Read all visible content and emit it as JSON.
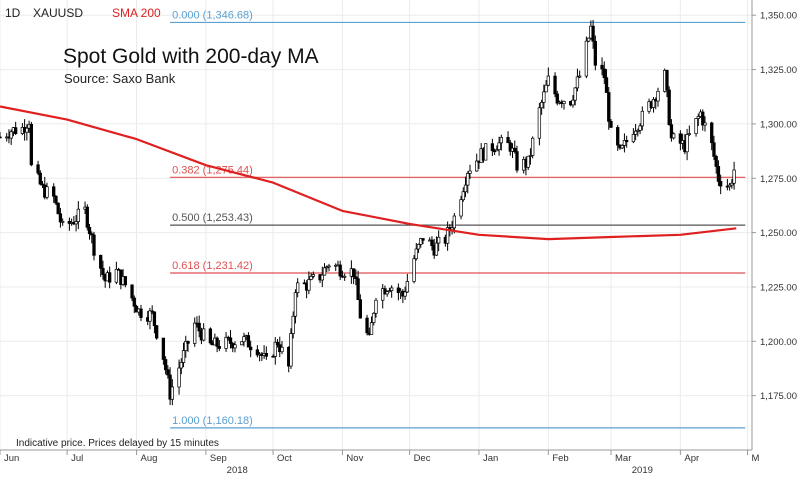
{
  "header": {
    "interval": "1D",
    "symbol": "XAUUSD",
    "indicator": "SMA 200",
    "indicator_color": "#e02020"
  },
  "title_block": {
    "title": "Spot Gold with 200-day MA",
    "source": "Source: Saxo Bank"
  },
  "footer_note": "Indicative price. Prices delayed by 15 minutes",
  "colors": {
    "candle": "#000000",
    "sma": "#e02020",
    "fib_blue": "#5aa0d0",
    "fib_red": "#e05050",
    "fib_grey": "#555555",
    "grid": "#ebebeb",
    "axis": "#999999"
  },
  "chart_data": {
    "type": "candlestick",
    "title": "Spot Gold with 200-day MA",
    "subtitle": "Source: Saxo Bank",
    "ylim": [
      1150,
      1357
    ],
    "xlim": [
      "2018-06-01",
      "2019-05-03"
    ],
    "y_ticks": [
      "1,175.00",
      "1,200.00",
      "1,225.00",
      "1,250.00",
      "1,275.00",
      "1,300.00",
      "1,325.00",
      "1,350.00"
    ],
    "y_tick_values": [
      1175,
      1200,
      1225,
      1250,
      1275,
      1300,
      1325,
      1350
    ],
    "x_ticks": [
      {
        "label": "Jun",
        "date": "2018-06-01"
      },
      {
        "label": "Jul",
        "date": "2018-07-01"
      },
      {
        "label": "Aug",
        "date": "2018-08-01"
      },
      {
        "label": "Sep",
        "date": "2018-09-01"
      },
      {
        "label": "Oct",
        "date": "2018-10-01"
      },
      {
        "label": "Nov",
        "date": "2018-11-01"
      },
      {
        "label": "Dec",
        "date": "2018-12-01"
      },
      {
        "label": "Jan",
        "date": "2019-01-01"
      },
      {
        "label": "Feb",
        "date": "2019-02-01"
      },
      {
        "label": "Mar",
        "date": "2019-03-01"
      },
      {
        "label": "Apr",
        "date": "2019-04-01"
      },
      {
        "label": "M",
        "date": "2019-05-01"
      }
    ],
    "year_labels": [
      {
        "label": "2018",
        "date": "2018-09-15"
      },
      {
        "label": "2019",
        "date": "2019-03-15"
      }
    ],
    "fib_levels": [
      {
        "label": "0.000 (1,346.68)",
        "value": 1346.68,
        "color": "#5aa0d0"
      },
      {
        "label": "0.382 (1,275.44)",
        "value": 1275.44,
        "color": "#e05050"
      },
      {
        "label": "0.500 (1,253.43)",
        "value": 1253.43,
        "color": "#555555"
      },
      {
        "label": "0.618 (1,231.42)",
        "value": 1231.42,
        "color": "#e05050"
      },
      {
        "label": "1.000 (1,160.18)",
        "value": 1160.18,
        "color": "#5aa0d0"
      }
    ],
    "price_path": [
      [
        "2018-06-01",
        1294
      ],
      [
        "2018-06-06",
        1297
      ],
      [
        "2018-06-11",
        1298
      ],
      [
        "2018-06-14",
        1302
      ],
      [
        "2018-06-15",
        1280
      ],
      [
        "2018-06-20",
        1270
      ],
      [
        "2018-06-25",
        1266
      ],
      [
        "2018-06-29",
        1252
      ],
      [
        "2018-07-03",
        1255
      ],
      [
        "2018-07-09",
        1260
      ],
      [
        "2018-07-13",
        1243
      ],
      [
        "2018-07-18",
        1228
      ],
      [
        "2018-07-23",
        1232
      ],
      [
        "2018-07-27",
        1226
      ],
      [
        "2018-08-02",
        1214
      ],
      [
        "2018-08-08",
        1212
      ],
      [
        "2018-08-13",
        1193
      ],
      [
        "2018-08-16",
        1176
      ],
      [
        "2018-08-20",
        1188
      ],
      [
        "2018-08-27",
        1208
      ],
      [
        "2018-09-03",
        1198
      ],
      [
        "2018-09-10",
        1199
      ],
      [
        "2018-09-17",
        1201
      ],
      [
        "2018-09-24",
        1197
      ],
      [
        "2018-09-28",
        1190
      ],
      [
        "2018-10-03",
        1200
      ],
      [
        "2018-10-08",
        1188
      ],
      [
        "2018-10-11",
        1225
      ],
      [
        "2018-10-16",
        1226
      ],
      [
        "2018-10-22",
        1230
      ],
      [
        "2018-10-26",
        1236
      ],
      [
        "2018-11-01",
        1233
      ],
      [
        "2018-11-06",
        1232
      ],
      [
        "2018-11-09",
        1212
      ],
      [
        "2018-11-13",
        1200
      ],
      [
        "2018-11-16",
        1222
      ],
      [
        "2018-11-22",
        1226
      ],
      [
        "2018-11-28",
        1221
      ],
      [
        "2018-12-03",
        1238
      ],
      [
        "2018-12-07",
        1248
      ],
      [
        "2018-12-12",
        1243
      ],
      [
        "2018-12-17",
        1247
      ],
      [
        "2018-12-21",
        1257
      ],
      [
        "2018-12-27",
        1279
      ],
      [
        "2019-01-02",
        1286
      ],
      [
        "2019-01-09",
        1291
      ],
      [
        "2019-01-15",
        1290
      ],
      [
        "2019-01-18",
        1281
      ],
      [
        "2019-01-23",
        1282
      ],
      [
        "2019-01-28",
        1306
      ],
      [
        "2019-02-01",
        1320
      ],
      [
        "2019-02-05",
        1312
      ],
      [
        "2019-02-11",
        1311
      ],
      [
        "2019-02-15",
        1322
      ],
      [
        "2019-02-20",
        1344
      ],
      [
        "2019-02-22",
        1328
      ],
      [
        "2019-02-26",
        1322
      ],
      [
        "2019-03-01",
        1295
      ],
      [
        "2019-03-05",
        1286
      ],
      [
        "2019-03-11",
        1298
      ],
      [
        "2019-03-15",
        1303
      ],
      [
        "2019-03-20",
        1312
      ],
      [
        "2019-03-25",
        1322
      ],
      [
        "2019-03-28",
        1293
      ],
      [
        "2019-04-03",
        1290
      ],
      [
        "2019-04-10",
        1305
      ],
      [
        "2019-04-15",
        1290
      ],
      [
        "2019-04-18",
        1275
      ],
      [
        "2019-04-23",
        1271
      ],
      [
        "2019-04-26",
        1283
      ]
    ],
    "series": [
      {
        "name": "SMA 200",
        "color": "#e02020",
        "points": [
          [
            "2018-06-01",
            1308
          ],
          [
            "2018-07-01",
            1302
          ],
          [
            "2018-08-01",
            1293
          ],
          [
            "2018-09-01",
            1281
          ],
          [
            "2018-10-01",
            1273
          ],
          [
            "2018-11-01",
            1260
          ],
          [
            "2018-12-01",
            1254
          ],
          [
            "2019-01-01",
            1249
          ],
          [
            "2019-02-01",
            1247
          ],
          [
            "2019-03-01",
            1248
          ],
          [
            "2019-04-01",
            1249
          ],
          [
            "2019-04-26",
            1252
          ]
        ]
      }
    ]
  }
}
